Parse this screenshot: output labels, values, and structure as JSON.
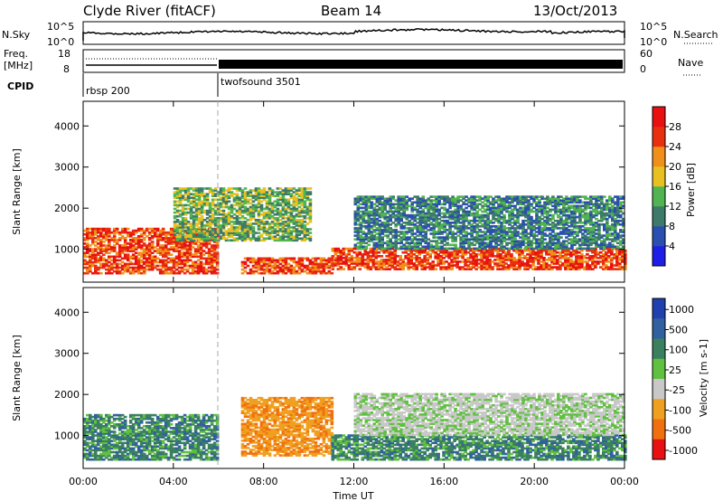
{
  "header": {
    "station": "Clyde River (fitACF)",
    "beam": "Beam 14",
    "date": "13/Oct/2013"
  },
  "summary_panels": {
    "nsky_label": "N.Sky",
    "nsky_scale_top": "10^5",
    "nsky_scale_bottom": "10^0",
    "nsearch_label": "N.Search",
    "freq_label": "Freq.",
    "freq_unit": "[MHz]",
    "freq_ticks": [
      "18",
      "8"
    ],
    "nave_ticks": [
      "60",
      "0"
    ],
    "nave_label": "Nave",
    "cpid_label": "CPID",
    "cpid_segments": [
      {
        "name": "rbsp 200",
        "start_hour": 0
      },
      {
        "name": "twofsound 3501",
        "start_hour": 6
      }
    ]
  },
  "chart_data": [
    {
      "type": "heatmap",
      "title": "",
      "ylabel": "Slant Range [km]",
      "yticks": [
        1000,
        2000,
        3000,
        4000
      ],
      "ylim": [
        200,
        4600
      ],
      "xlim": [
        0,
        24
      ],
      "colorbar": {
        "label": "Power [dB]",
        "min": 0,
        "max": 32,
        "ticks": [
          "4",
          "8",
          "12",
          "16",
          "20",
          "24",
          "28"
        ],
        "colors": [
          "#1e1ee6",
          "#2a4fb0",
          "#3d7a6a",
          "#50b450",
          "#e8c020",
          "#f0901a",
          "#e83010",
          "#e81010"
        ]
      },
      "echo_bands": [
        {
          "hours": [
            0,
            6
          ],
          "range_km": [
            400,
            1500
          ],
          "level": "high"
        },
        {
          "hours": [
            4,
            10
          ],
          "range_km": [
            1200,
            2500
          ],
          "level": "medium"
        },
        {
          "hours": [
            7,
            11
          ],
          "range_km": [
            400,
            800
          ],
          "level": "high"
        },
        {
          "hours": [
            11,
            24
          ],
          "range_km": [
            500,
            1000
          ],
          "level": "high"
        },
        {
          "hours": [
            12,
            24
          ],
          "range_km": [
            1000,
            2300
          ],
          "level": "low"
        }
      ]
    },
    {
      "type": "heatmap",
      "title": "",
      "ylabel": "Slant Range [km]",
      "xlabel": "Time UT",
      "yticks": [
        1000,
        2000,
        3000,
        4000
      ],
      "ylim": [
        200,
        4600
      ],
      "xlim": [
        0,
        24
      ],
      "xticks": [
        "00:00",
        "04:00",
        "08:00",
        "12:00",
        "16:00",
        "20:00",
        "00:00"
      ],
      "colorbar": {
        "label": "Velocity [m s-1]",
        "ticks": [
          "1000",
          "500",
          "100",
          "25",
          "-25",
          "-100",
          "-500",
          "-1000"
        ],
        "colors": [
          "#2040b0",
          "#3060a0",
          "#3a8060",
          "#60c040",
          "#c8c8c8",
          "#f0a020",
          "#f07010",
          "#e81010"
        ]
      },
      "echo_bands": [
        {
          "hours": [
            0,
            6
          ],
          "range_km": [
            400,
            1500
          ],
          "velocity": "100 to 500"
        },
        {
          "hours": [
            7,
            11
          ],
          "range_km": [
            500,
            1900
          ],
          "velocity": "-100 to -500"
        },
        {
          "hours": [
            11,
            24
          ],
          "range_km": [
            400,
            1000
          ],
          "velocity": "100 to 500"
        },
        {
          "hours": [
            12,
            24
          ],
          "range_km": [
            1000,
            2000
          ],
          "velocity": "-25 to 25"
        }
      ]
    }
  ]
}
